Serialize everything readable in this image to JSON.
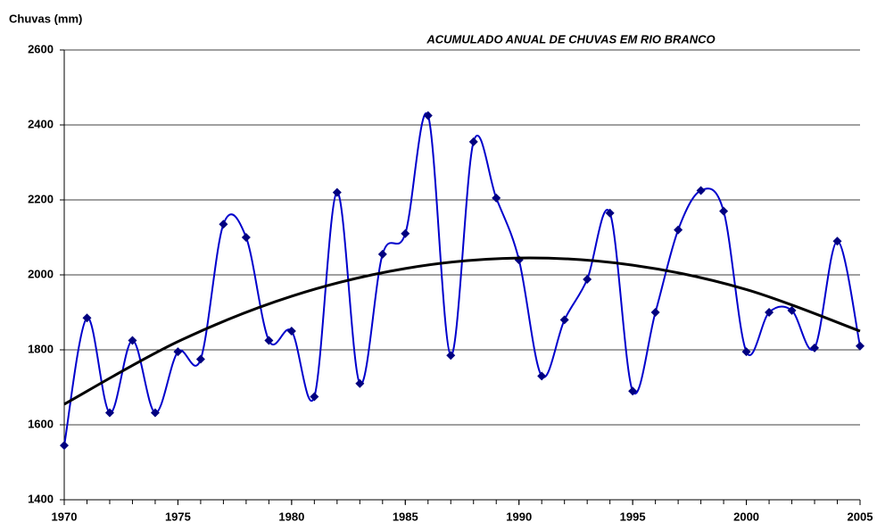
{
  "chart_data": {
    "type": "line",
    "title": "ACUMULADO ANUAL DE CHUVAS EM RIO BRANCO",
    "y_label": "Chuvas (mm)",
    "x": [
      1970,
      1971,
      1972,
      1973,
      1974,
      1975,
      1976,
      1977,
      1978,
      1979,
      1980,
      1981,
      1982,
      1983,
      1984,
      1985,
      1986,
      1987,
      1988,
      1989,
      1990,
      1991,
      1992,
      1993,
      1994,
      1995,
      1996,
      1997,
      1998,
      1999,
      2000,
      2001,
      2002,
      2003,
      2004,
      2005
    ],
    "series": [
      {
        "color": "#0000cc",
        "marker_color": "#000080",
        "values": [
          1545,
          1885,
          1632,
          1825,
          1632,
          1795,
          1775,
          2135,
          2100,
          1825,
          1850,
          1675,
          2220,
          1710,
          2055,
          2110,
          2425,
          1785,
          2355,
          2205,
          2040,
          1730,
          1880,
          1988,
          2165,
          1690,
          1900,
          2120,
          2225,
          2170,
          1795,
          1900,
          1905,
          1805,
          2090,
          1810
        ]
      },
      {
        "color": "#000000",
        "x": [
          1970,
          1975,
          1980,
          1985,
          1990,
          1995,
          2000,
          2005
        ],
        "values": [
          1655,
          1822,
          1943,
          2017,
          2045,
          2026,
          1961,
          1850
        ]
      }
    ],
    "xlim": [
      1970,
      2005
    ],
    "xticks": [
      1970,
      1975,
      1980,
      1985,
      1990,
      1995,
      2000,
      2005
    ],
    "ylim": [
      1400,
      2600
    ],
    "yticks": [
      1400,
      1600,
      1800,
      2000,
      2200,
      2400,
      2600
    ],
    "grid": true
  }
}
